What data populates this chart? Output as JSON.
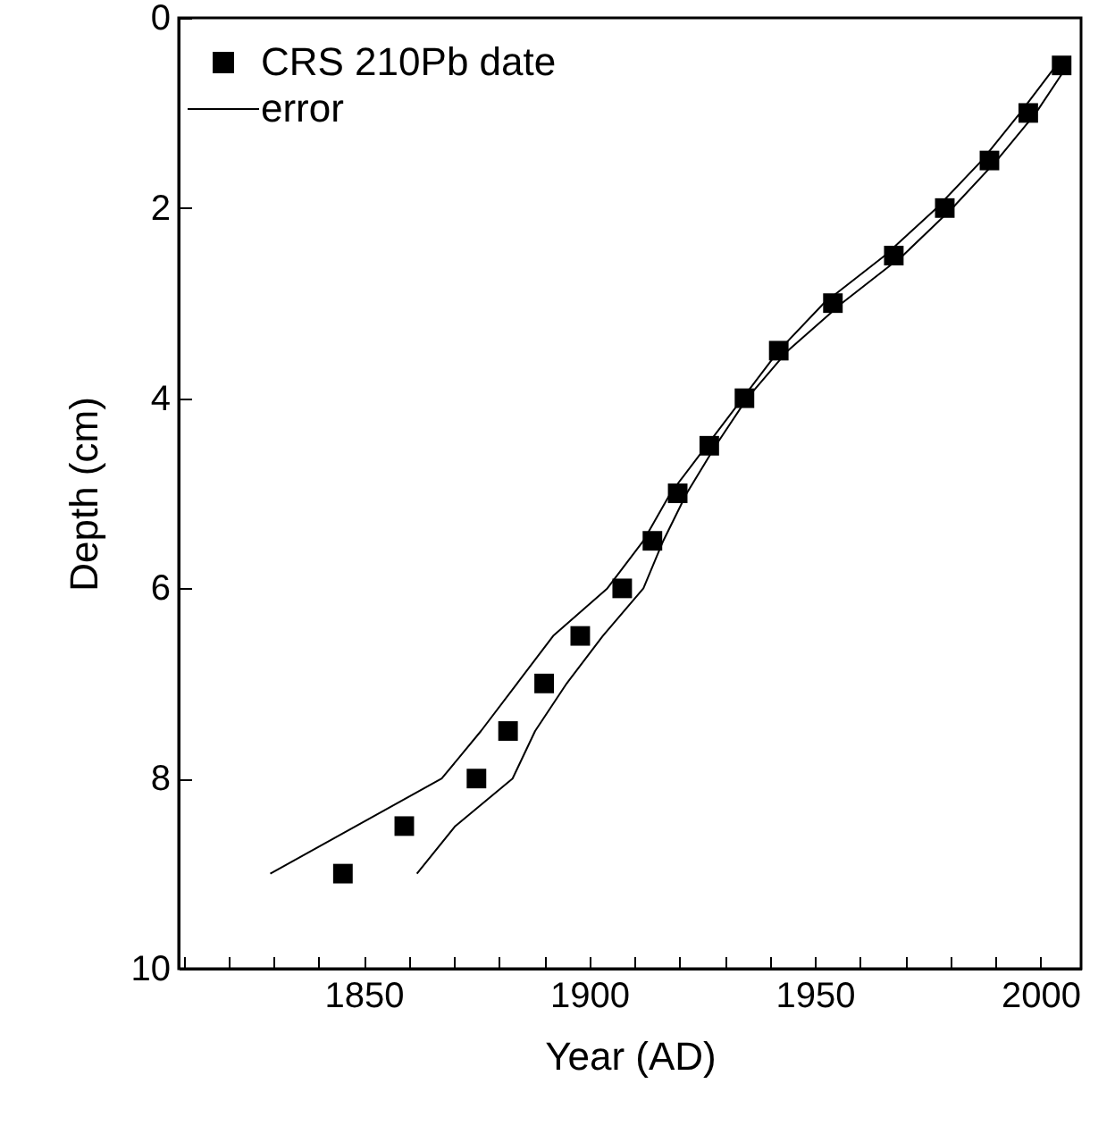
{
  "chart_data": {
    "type": "scatter",
    "xlabel": "Year (AD)",
    "ylabel": "Depth (cm)",
    "xlim": [
      1809,
      2009
    ],
    "xticks": [
      {
        "value": 1810,
        "label": null
      },
      {
        "value": 1820,
        "label": null
      },
      {
        "value": 1830,
        "label": null
      },
      {
        "value": 1840,
        "label": null
      },
      1850,
      {
        "value": 1860,
        "label": null
      },
      {
        "value": 1870,
        "label": null
      },
      {
        "value": 1880,
        "label": null
      },
      {
        "value": 1890,
        "label": null
      },
      1900,
      {
        "value": 1910,
        "label": null
      },
      {
        "value": 1920,
        "label": null
      },
      {
        "value": 1930,
        "label": null
      },
      {
        "value": 1940,
        "label": null
      },
      1950,
      {
        "value": 1960,
        "label": null
      },
      {
        "value": 1970,
        "label": null
      },
      {
        "value": 1980,
        "label": null
      },
      {
        "value": 1990,
        "label": null
      },
      2000
    ],
    "ylim": [
      10,
      0
    ],
    "yticks": [
      0,
      2,
      4,
      6,
      8,
      10
    ],
    "legend": "top left",
    "grid": false,
    "series": [
      {
        "name": "CRS 210Pb date",
        "marker": "square",
        "color": "#000000",
        "x": [
          2004.7,
          1997.3,
          1988.7,
          1978.8,
          1967.5,
          1954,
          1942,
          1934.4,
          1926.6,
          1919.6,
          1914,
          1907.3,
          1898,
          1890,
          1882,
          1875,
          1859,
          1845.4
        ],
        "values": [
          0.5,
          1,
          1.5,
          2,
          2.5,
          3,
          3.5,
          4,
          4.5,
          5,
          5.5,
          6,
          6.5,
          7,
          7.5,
          8,
          8.5,
          9
        ]
      },
      {
        "name": "error",
        "type": "line",
        "color": "#000000",
        "x": [
          1829.3,
          1867.3,
          1876,
          1884,
          1892,
          1904,
          1912,
          1918,
          1926,
          1934,
          1942,
          1952,
          1965.5,
          1977,
          1987,
          1995.5,
          2003.5
        ],
        "values": [
          9,
          8,
          7.5,
          7,
          6.5,
          6,
          5.5,
          5,
          4.5,
          4,
          3.5,
          3,
          2.5,
          2,
          1.5,
          1,
          0.5
        ]
      },
      {
        "type": "line",
        "color": "#000000",
        "x": [
          1861.8,
          1870.3,
          1883,
          1888,
          1895,
          1903,
          1912,
          1916.4,
          1921.6,
          1928,
          1935,
          1944,
          1956,
          1969.5,
          1980.5,
          1990.3,
          1999,
          2006
        ],
        "values": [
          9,
          8.5,
          8,
          7.5,
          7,
          6.5,
          6,
          5.5,
          5,
          4.5,
          4,
          3.5,
          3,
          2.5,
          2,
          1.5,
          1,
          0.5
        ]
      }
    ]
  }
}
